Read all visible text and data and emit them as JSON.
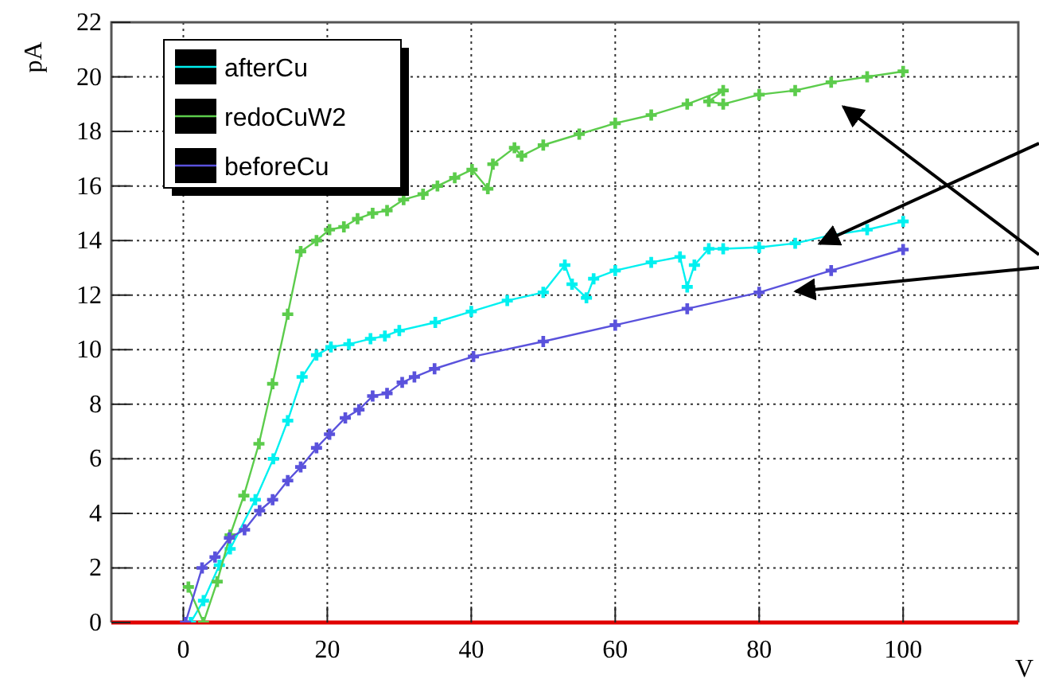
{
  "chart_data": {
    "type": "line",
    "xlabel": "V",
    "ylabel": "pA",
    "xlim": [
      -10,
      116
    ],
    "ylim": [
      0,
      22
    ],
    "xticks": [
      0,
      20,
      40,
      60,
      80,
      100
    ],
    "yticks": [
      0,
      2,
      4,
      6,
      8,
      10,
      12,
      14,
      16,
      18,
      20,
      22
    ],
    "grid": true,
    "legend": "top left",
    "marker": "cross",
    "line_style": "solid",
    "series": [
      {
        "name": "afterCu",
        "color": "#00f0f0",
        "x": [
          1,
          2.8,
          5,
          6.5,
          10,
          12.5,
          14.5,
          16.5,
          18.5,
          20.5,
          23,
          26,
          28,
          30,
          35,
          40,
          45,
          50,
          53,
          54,
          56,
          57,
          60,
          65,
          69,
          70,
          71,
          73,
          75,
          80,
          85,
          90,
          95,
          100
        ],
        "values": [
          0,
          0.8,
          2.1,
          2.7,
          4.5,
          6,
          7.4,
          9,
          9.8,
          10.1,
          10.2,
          10.4,
          10.5,
          10.7,
          11,
          11.4,
          11.8,
          12.1,
          13.1,
          12.4,
          11.9,
          12.6,
          12.9,
          13.2,
          13.4,
          12.3,
          13.1,
          13.7,
          13.7,
          13.75,
          13.9,
          14.2,
          14.4,
          14.7
        ]
      },
      {
        "name": "redoCuW2",
        "color": "#5ccc4c",
        "x": [
          0.7,
          2.8,
          4.7,
          6.5,
          8.4,
          10.5,
          12.4,
          14.5,
          16.3,
          18.5,
          20.3,
          22.3,
          24.2,
          26.3,
          28.3,
          30.6,
          33.3,
          35.3,
          37.7,
          40.1,
          42.3,
          43,
          46,
          47,
          50,
          55,
          60,
          65,
          70,
          75,
          73,
          75,
          80,
          85,
          90,
          95,
          100
        ],
        "values": [
          1.3,
          0,
          1.5,
          3.2,
          4.65,
          6.55,
          8.75,
          11.3,
          13.6,
          14,
          14.4,
          14.5,
          14.8,
          15,
          15.1,
          15.5,
          15.7,
          16,
          16.3,
          16.6,
          15.9,
          16.8,
          17.4,
          17.1,
          17.5,
          17.9,
          18.3,
          18.6,
          19,
          19.5,
          19.1,
          19,
          19.35,
          19.5,
          19.8,
          20,
          20.2
        ]
      },
      {
        "name": "beforeCu",
        "color": "#5a52dc",
        "x": [
          0.3,
          2.6,
          4.4,
          6.4,
          8.5,
          10.6,
          12.4,
          14.5,
          16.3,
          18.5,
          20.3,
          22.5,
          24.4,
          26.3,
          28.3,
          30.4,
          32.1,
          34.9,
          40.3,
          50,
          60,
          70,
          80,
          90,
          100
        ],
        "values": [
          0,
          2,
          2.4,
          3.1,
          3.4,
          4.1,
          4.5,
          5.2,
          5.7,
          6.4,
          6.9,
          7.5,
          7.8,
          8.3,
          8.4,
          8.8,
          9,
          9.3,
          9.75,
          10.3,
          10.9,
          11.5,
          12.1,
          12.9,
          13.67
        ]
      }
    ]
  }
}
